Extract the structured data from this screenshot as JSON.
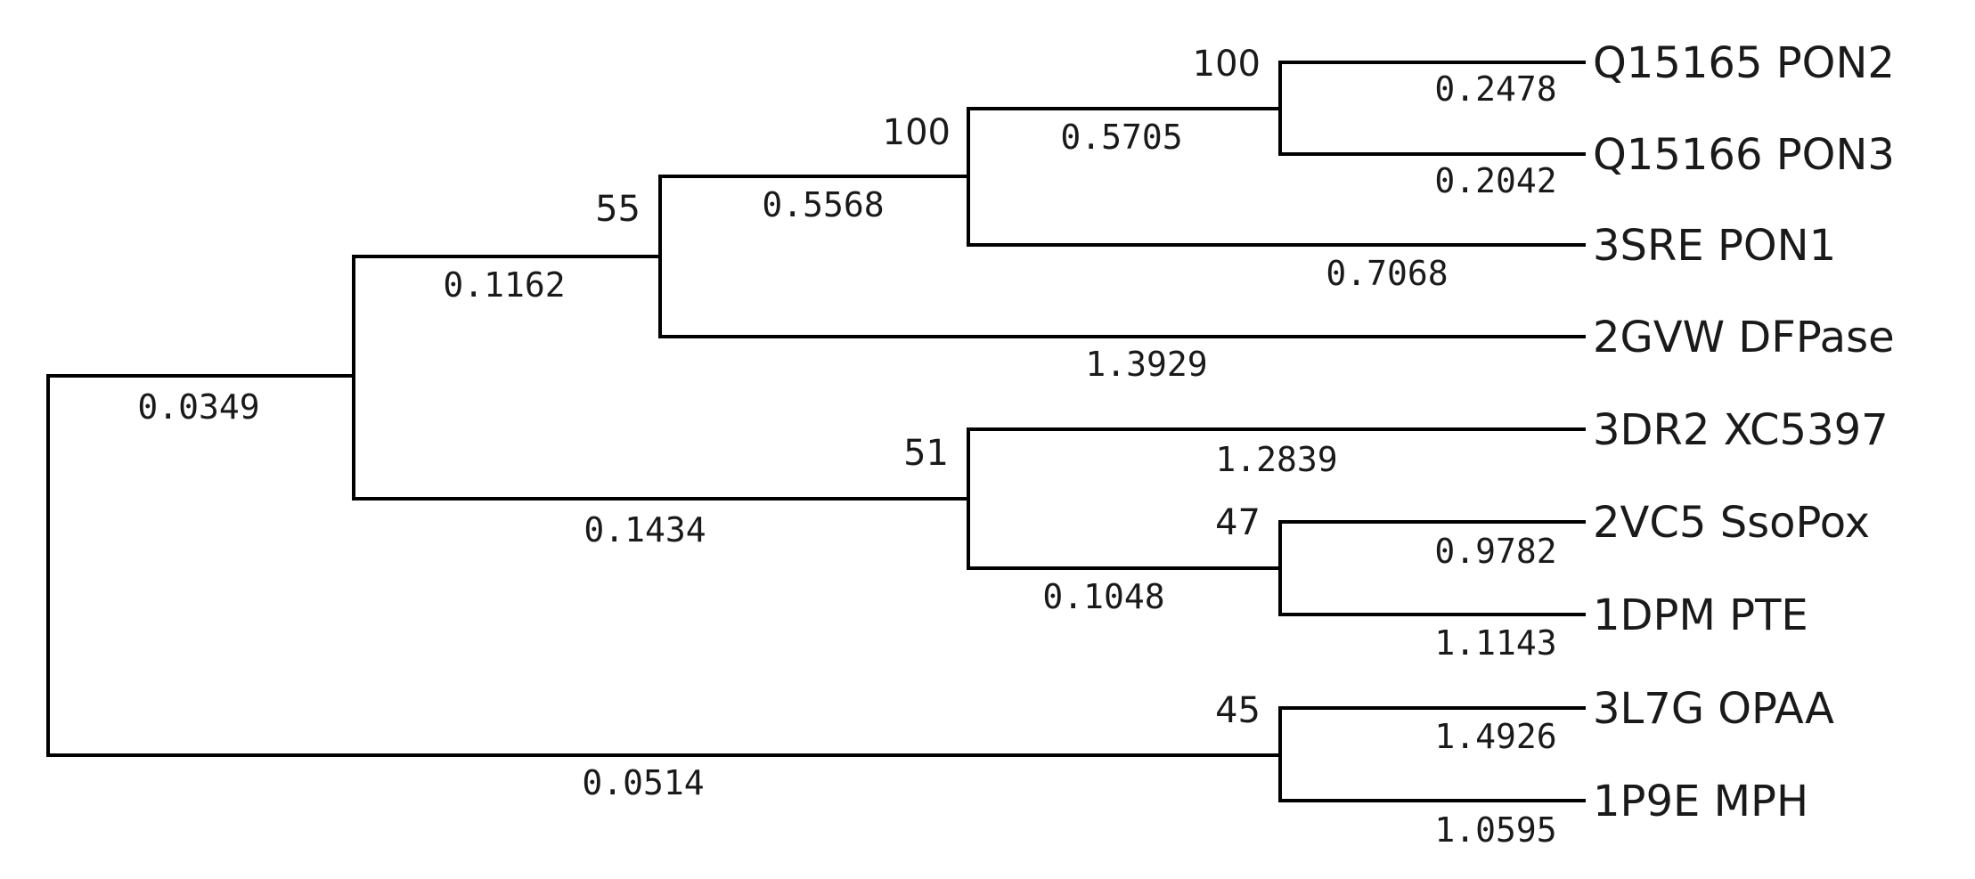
{
  "tree": {
    "leaves": [
      {
        "id": "pon2",
        "label": "Q15165 PON2",
        "length": "0.2478"
      },
      {
        "id": "pon3",
        "label": "Q15166 PON3",
        "length": "0.2042"
      },
      {
        "id": "pon1",
        "label": "3SRE PON1",
        "length": "0.7068"
      },
      {
        "id": "dfpase",
        "label": "2GVW DFPase",
        "length": "1.3929"
      },
      {
        "id": "xc5397",
        "label": "3DR2 XC5397",
        "length": "1.2839"
      },
      {
        "id": "ssopox",
        "label": "2VC5 SsoPox",
        "length": "0.9782"
      },
      {
        "id": "pte",
        "label": "1DPM PTE",
        "length": "1.1143"
      },
      {
        "id": "opaa",
        "label": "3L7G OPAA",
        "length": "1.4926"
      },
      {
        "id": "mph",
        "label": "1P9E MPH",
        "length": "1.0595"
      }
    ],
    "internal_nodes": [
      {
        "id": "n_pon23",
        "bootstrap": "100",
        "length": "0.5705"
      },
      {
        "id": "n_pon123",
        "bootstrap": "100",
        "length": "0.5568"
      },
      {
        "id": "n_pon_dfp",
        "bootstrap": "55",
        "length": "0.1162"
      },
      {
        "id": "n_sso_pte",
        "bootstrap": "47",
        "length": "0.1048"
      },
      {
        "id": "n_xc_sso_pte",
        "bootstrap": "51",
        "length": "0.1434"
      },
      {
        "id": "n_upper",
        "bootstrap": "",
        "length": "0.0349"
      },
      {
        "id": "n_opaa_mph",
        "bootstrap": "45",
        "length": "0.0514"
      }
    ]
  }
}
